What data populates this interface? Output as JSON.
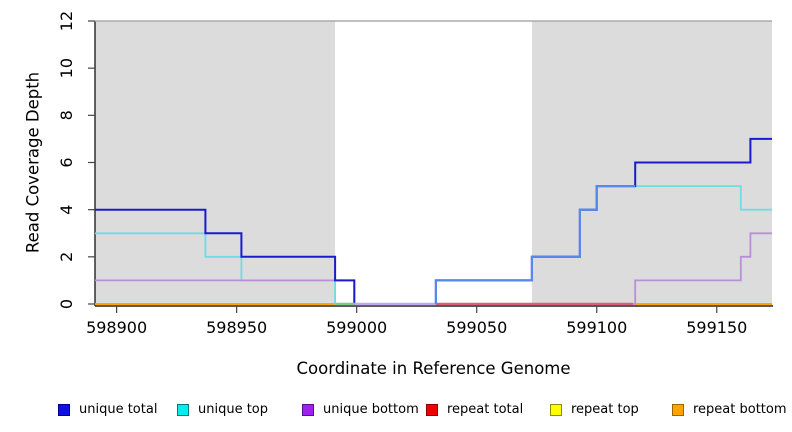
{
  "figure": {
    "background": "#FFFFFF"
  },
  "chart_data": {
    "type": "line",
    "subtype": "step",
    "title": "",
    "xlabel": "Coordinate in Reference Genome",
    "ylabel": "Read Coverage Depth",
    "xlim": [
      598891,
      599173
    ],
    "ylim": [
      0,
      12
    ],
    "x_ticks": [
      598900,
      598950,
      599000,
      599050,
      599100,
      599150
    ],
    "y_ticks": [
      0,
      2,
      4,
      6,
      8,
      10,
      12
    ],
    "grid": false,
    "legend_position": "bottom",
    "axis_color": "#222222",
    "tick_label_color": "#000000",
    "shaded_regions": [
      {
        "x_start": 598891,
        "x_end": 598991,
        "color": "#DCDCDC"
      },
      {
        "x_start": 599073,
        "x_end": 599173,
        "color": "#DCDCDC"
      }
    ],
    "series": [
      {
        "name": "unique total",
        "legend_color": "#1010E0",
        "legend_border": "#000090",
        "line_color": "#1B1BCE",
        "line_width": 2,
        "z": 6,
        "points": [
          [
            598891,
            4
          ],
          [
            598937,
            4
          ],
          [
            598937,
            3
          ],
          [
            598952,
            3
          ],
          [
            598952,
            2
          ],
          [
            598991,
            2
          ],
          [
            598991,
            1
          ],
          [
            598999,
            1
          ],
          [
            598999,
            0
          ],
          [
            599033,
            0
          ],
          [
            599033,
            1
          ],
          [
            599073,
            1
          ],
          [
            599073,
            2
          ],
          [
            599093,
            2
          ],
          [
            599093,
            4
          ],
          [
            599100,
            4
          ],
          [
            599100,
            5
          ],
          [
            599116,
            5
          ],
          [
            599116,
            6
          ],
          [
            599164,
            6
          ],
          [
            599164,
            7
          ],
          [
            599173,
            7
          ]
        ]
      },
      {
        "name": "unique top",
        "legend_color": "#00EEEE",
        "legend_border": "#007A7A",
        "line_color": "#6FDCE4",
        "line_width": 1.8,
        "z": 4,
        "points": [
          [
            598891,
            3
          ],
          [
            598937,
            3
          ],
          [
            598937,
            2
          ],
          [
            598952,
            2
          ],
          [
            598952,
            1
          ],
          [
            598991,
            1
          ],
          [
            598991,
            0
          ],
          [
            599033,
            0
          ],
          [
            599033,
            1
          ],
          [
            599073,
            1
          ],
          [
            599073,
            2
          ],
          [
            599093,
            2
          ],
          [
            599093,
            4
          ],
          [
            599100,
            4
          ],
          [
            599100,
            5
          ],
          [
            599160,
            5
          ],
          [
            599160,
            4
          ],
          [
            599173,
            4
          ]
        ]
      },
      {
        "name": "unique bottom",
        "legend_color": "#A020F0",
        "legend_border": "#5C0E8E",
        "line_color": "#B78FDB",
        "line_width": 1.8,
        "z": 5,
        "points": [
          [
            598891,
            1
          ],
          [
            598999,
            1
          ],
          [
            598999,
            0
          ],
          [
            599116,
            0
          ],
          [
            599116,
            1
          ],
          [
            599160,
            1
          ],
          [
            599160,
            2
          ],
          [
            599164,
            2
          ],
          [
            599164,
            3
          ],
          [
            599173,
            3
          ]
        ]
      },
      {
        "name": "repeat total",
        "legend_color": "#EE0000",
        "legend_border": "#8E0000",
        "line_color": "#E03838",
        "line_width": 1.8,
        "z": 1,
        "points": [
          [
            598891,
            0
          ],
          [
            599173,
            0
          ]
        ]
      },
      {
        "name": "repeat top",
        "legend_color": "#FFFF00",
        "legend_border": "#8E8E00",
        "line_color": "#FFE600",
        "line_width": 1.8,
        "z": 2,
        "points": [
          [
            598891,
            0
          ],
          [
            599173,
            0
          ]
        ]
      },
      {
        "name": "repeat bottom",
        "legend_color": "#FFA500",
        "legend_border": "#9C6500",
        "line_color": "#FFA500",
        "line_width": 2,
        "z": 3,
        "points": [
          [
            598891,
            0
          ],
          [
            599173,
            0
          ]
        ]
      }
    ],
    "overlap_segments": [
      {
        "color": "#7CCB87",
        "width": 2.4,
        "points": [
          [
            598991,
            0
          ],
          [
            598999,
            0
          ]
        ]
      },
      {
        "color": "#BFA9F0",
        "width": 2.4,
        "points": [
          [
            598999,
            0
          ],
          [
            599033,
            0
          ]
        ]
      },
      {
        "color": "#DB5E74",
        "width": 2.4,
        "points": [
          [
            599033,
            0
          ],
          [
            599115,
            0
          ]
        ]
      },
      {
        "color": "#5589EC",
        "width": 2.2,
        "points": [
          [
            599033,
            0
          ],
          [
            599033,
            1
          ],
          [
            599073,
            1
          ],
          [
            599073,
            2
          ],
          [
            599093,
            2
          ],
          [
            599093,
            4
          ],
          [
            599100,
            4
          ],
          [
            599100,
            5
          ],
          [
            599116,
            5
          ]
        ]
      },
      {
        "color": "#ABABAB",
        "width": 1.4,
        "points": [
          [
            598891,
            12
          ],
          [
            599173,
            12
          ]
        ]
      }
    ]
  }
}
